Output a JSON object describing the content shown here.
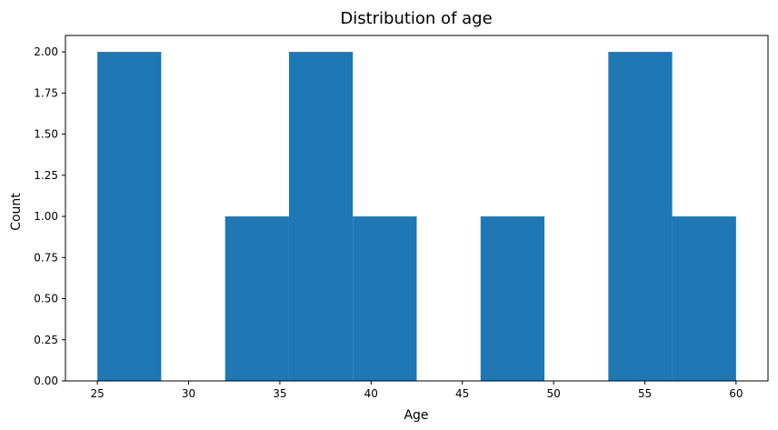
{
  "chart_data": {
    "type": "bar",
    "title": "Distribution of age",
    "xlabel": "Age",
    "ylabel": "Count",
    "bin_edges": [
      25,
      28.5,
      32,
      35.5,
      39,
      42.5,
      46,
      49.5,
      53,
      56.5,
      60
    ],
    "values": [
      2,
      0,
      1,
      2,
      1,
      0,
      1,
      0,
      2,
      1
    ],
    "xlim": [
      23.25,
      61.75
    ],
    "ylim": [
      0,
      2.1
    ],
    "xticks": [
      25,
      30,
      35,
      40,
      45,
      50,
      55,
      60
    ],
    "yticks": [
      0.0,
      0.25,
      0.5,
      0.75,
      1.0,
      1.25,
      1.5,
      1.75,
      2.0
    ],
    "ytick_labels": [
      "0.00",
      "0.25",
      "0.50",
      "0.75",
      "1.00",
      "1.25",
      "1.50",
      "1.75",
      "2.00"
    ],
    "grid": false,
    "bar_color": "#1f77b4"
  }
}
